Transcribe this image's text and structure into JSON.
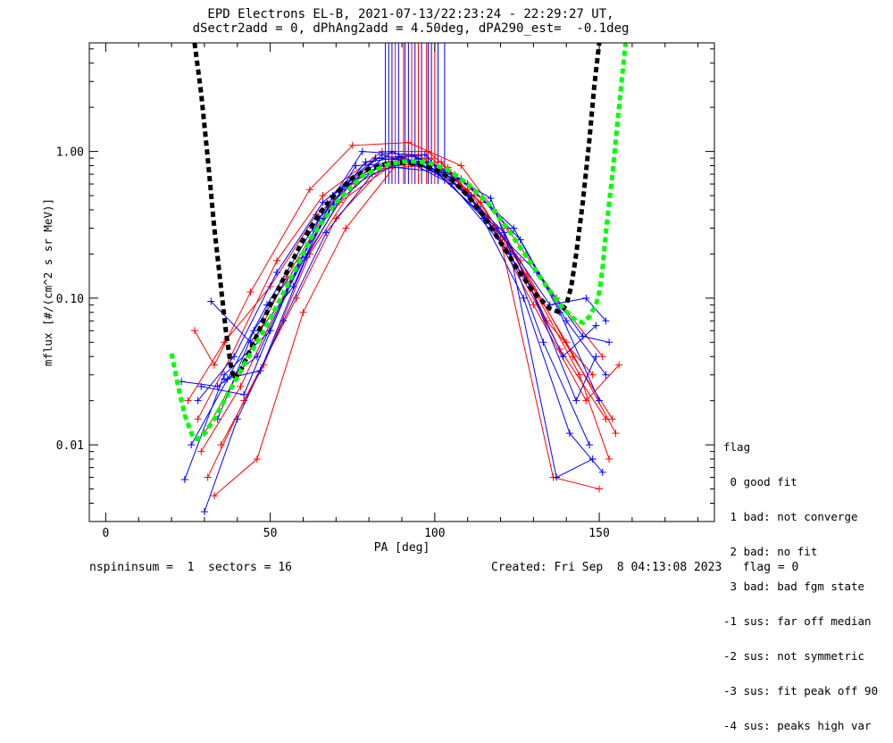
{
  "title": {
    "line1": "EPD Electrons EL-B, 2021-07-13/22:23:24 - 22:29:27 UT,",
    "line2": "dSectr2add = 0, dPhAng2add = 4.50deg, dPA290_est=  -0.1deg"
  },
  "footer": {
    "left": "nspininsum =  1  sectors = 16",
    "right": "Created: Fri Sep  8 04:13:08 2023   flag = 0"
  },
  "legend": {
    "title": "flag",
    "items": [
      " 0 good fit",
      " 1 bad: not converge",
      " 2 bad: no fit",
      " 3 bad: bad fgm state",
      "-1 sus: far off median",
      "-2 sus: not symmetric",
      "-3 sus: fit peak off 90",
      "-4 sus: peaks high var"
    ]
  },
  "chart_data": {
    "type": "line",
    "xlabel": "PA [deg]",
    "ylabel": "mflux [#/(cm^2 s sr MeV)]",
    "xlim": [
      -5,
      185
    ],
    "ylim": [
      0.003,
      5.5
    ],
    "yscale": "log",
    "xticks": [
      0,
      50,
      100,
      150
    ],
    "xtick_labels": [
      "0",
      "50",
      "100",
      "150"
    ],
    "yticks": [
      0.01,
      0.1,
      1.0
    ],
    "ytick_labels": [
      "0.01",
      "0.10",
      "1.00"
    ],
    "colors": {
      "red": "#ff0000",
      "blue": "#0000ff",
      "black": "#000000",
      "green": "#00ff00"
    },
    "series": [
      {
        "color": "red",
        "x": [
          27,
          33,
          44,
          62,
          75,
          92,
          108,
          122,
          137,
          151
        ],
        "y": [
          0.06,
          0.035,
          0.11,
          0.55,
          1.1,
          1.15,
          0.8,
          0.3,
          0.1,
          0.04
        ]
      },
      {
        "color": "red",
        "x": [
          30,
          40,
          55,
          68,
          82,
          95,
          110,
          124,
          140,
          155
        ],
        "y": [
          0.012,
          0.03,
          0.14,
          0.42,
          0.9,
          0.95,
          0.55,
          0.2,
          0.05,
          0.012
        ]
      },
      {
        "color": "red",
        "x": [
          25,
          36,
          50,
          64,
          80,
          96,
          112,
          126,
          142,
          154
        ],
        "y": [
          0.02,
          0.05,
          0.12,
          0.37,
          0.75,
          0.8,
          0.5,
          0.18,
          0.04,
          0.015
        ]
      },
      {
        "color": "red",
        "x": [
          31,
          42,
          58,
          70,
          86,
          99,
          114,
          128,
          144,
          153
        ],
        "y": [
          0.006,
          0.02,
          0.1,
          0.35,
          0.85,
          0.9,
          0.45,
          0.14,
          0.03,
          0.008
        ]
      },
      {
        "color": "red",
        "x": [
          33,
          46,
          60,
          73,
          88,
          102,
          116,
          130,
          146,
          156
        ],
        "y": [
          0.0045,
          0.008,
          0.08,
          0.3,
          0.8,
          0.85,
          0.35,
          0.09,
          0.02,
          0.035
        ]
      },
      {
        "color": "red",
        "x": [
          28,
          38,
          52,
          66,
          84,
          98,
          118,
          134,
          148
        ],
        "y": [
          0.015,
          0.04,
          0.18,
          0.5,
          1.0,
          1.0,
          0.4,
          0.07,
          0.03
        ]
      },
      {
        "color": "red",
        "x": [
          29,
          41,
          56,
          71,
          90,
          104,
          120,
          136,
          150
        ],
        "y": [
          0.009,
          0.025,
          0.13,
          0.45,
          0.9,
          0.78,
          0.25,
          0.006,
          0.005
        ]
      },
      {
        "color": "red",
        "x": [
          35,
          48,
          62,
          76,
          92,
          106,
          122,
          138,
          152
        ],
        "y": [
          0.01,
          0.035,
          0.2,
          0.6,
          0.95,
          0.7,
          0.22,
          0.045,
          0.015
        ]
      },
      {
        "color": "blue",
        "x": [
          23,
          34,
          46,
          60,
          76,
          94,
          110,
          126,
          140,
          152
        ],
        "y": [
          0.027,
          0.025,
          0.04,
          0.2,
          0.8,
          0.85,
          0.6,
          0.25,
          0.07,
          0.03
        ]
      },
      {
        "color": "blue",
        "x": [
          26,
          37,
          49,
          63,
          78,
          93,
          108,
          124,
          138,
          150
        ],
        "y": [
          0.01,
          0.028,
          0.09,
          0.3,
          1.0,
          0.95,
          0.65,
          0.3,
          0.08,
          0.02
        ]
      },
      {
        "color": "blue",
        "x": [
          30,
          40,
          54,
          67,
          81,
          95,
          111,
          127,
          141,
          151
        ],
        "y": [
          0.0035,
          0.015,
          0.07,
          0.28,
          0.7,
          0.9,
          0.5,
          0.1,
          0.012,
          0.0065
        ]
      },
      {
        "color": "blue",
        "x": [
          24,
          36,
          50,
          65,
          79,
          97,
          113,
          129,
          143,
          149
        ],
        "y": [
          0.0058,
          0.03,
          0.06,
          0.35,
          0.85,
          0.95,
          0.42,
          0.12,
          0.02,
          0.04
        ]
      },
      {
        "color": "blue",
        "x": [
          32,
          44,
          57,
          69,
          84,
          100,
          115,
          131,
          145,
          153
        ],
        "y": [
          0.095,
          0.05,
          0.12,
          0.5,
          0.95,
          0.75,
          0.35,
          0.15,
          0.055,
          0.05
        ]
      },
      {
        "color": "blue",
        "x": [
          28,
          39,
          52,
          66,
          82,
          98,
          117,
          133,
          147
        ],
        "y": [
          0.02,
          0.04,
          0.15,
          0.45,
          0.9,
          0.85,
          0.48,
          0.05,
          0.01
        ]
      },
      {
        "color": "blue",
        "x": [
          34,
          45,
          59,
          72,
          87,
          101,
          119,
          135,
          146,
          152
        ],
        "y": [
          0.015,
          0.06,
          0.18,
          0.55,
          1.0,
          0.7,
          0.3,
          0.09,
          0.1,
          0.07
        ]
      },
      {
        "color": "blue",
        "x": [
          29,
          42,
          55,
          68,
          83,
          103,
          121,
          139,
          149
        ],
        "y": [
          0.025,
          0.022,
          0.11,
          0.4,
          0.8,
          0.72,
          0.28,
          0.04,
          0.065
        ]
      },
      {
        "color": "blue",
        "x": [
          36,
          47,
          61,
          74,
          89,
          105,
          123,
          137,
          148
        ],
        "y": [
          0.028,
          0.032,
          0.19,
          0.6,
          0.92,
          0.6,
          0.2,
          0.006,
          0.008
        ]
      }
    ],
    "vertical_lines": {
      "red": [
        88,
        90.5,
        93,
        95,
        97.5,
        100
      ],
      "blue": [
        85,
        86,
        87,
        89,
        91,
        92,
        94,
        96,
        98,
        99,
        101,
        103
      ]
    },
    "fit_black": {
      "x": [
        27,
        29,
        31,
        33,
        35,
        36.5,
        38,
        39,
        41,
        45,
        50,
        55,
        60,
        65,
        70,
        75,
        80,
        85,
        90,
        95,
        100,
        105,
        110,
        115,
        120,
        125,
        130,
        135,
        138,
        140,
        141.5,
        143,
        145,
        147,
        148.5,
        150
      ],
      "y": [
        5.5,
        2.5,
        0.9,
        0.3,
        0.12,
        0.06,
        0.035,
        0.028,
        0.032,
        0.05,
        0.09,
        0.15,
        0.25,
        0.38,
        0.52,
        0.66,
        0.76,
        0.82,
        0.84,
        0.82,
        0.76,
        0.65,
        0.5,
        0.36,
        0.24,
        0.16,
        0.11,
        0.085,
        0.08,
        0.09,
        0.12,
        0.2,
        0.45,
        1.2,
        2.8,
        5.5
      ]
    },
    "fit_green": {
      "x": [
        20,
        22,
        24,
        26,
        27,
        28,
        30,
        33,
        37,
        42,
        48,
        55,
        62,
        70,
        78,
        86,
        92,
        98,
        104,
        110,
        116,
        122,
        128,
        134,
        139,
        143,
        145,
        147,
        149,
        150,
        151,
        152,
        154,
        156,
        158
      ],
      "y": [
        0.042,
        0.025,
        0.016,
        0.012,
        0.011,
        0.011,
        0.012,
        0.015,
        0.022,
        0.035,
        0.06,
        0.12,
        0.25,
        0.45,
        0.68,
        0.82,
        0.86,
        0.84,
        0.75,
        0.6,
        0.45,
        0.3,
        0.19,
        0.12,
        0.085,
        0.07,
        0.068,
        0.075,
        0.09,
        0.11,
        0.16,
        0.28,
        0.7,
        2.0,
        5.5
      ]
    }
  }
}
